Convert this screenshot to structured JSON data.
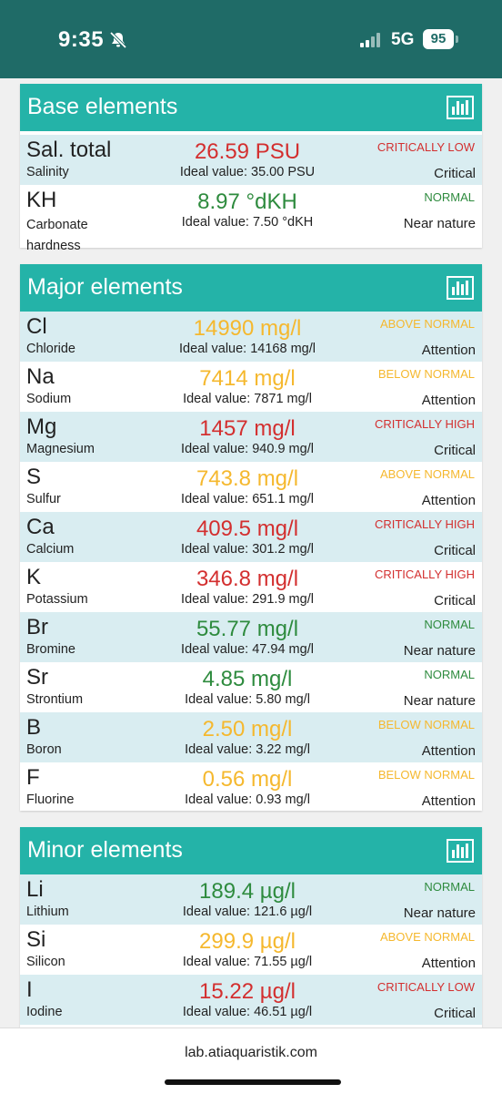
{
  "statusbar": {
    "time": "9:35",
    "network": "5G",
    "battery": "95"
  },
  "colors": {
    "header": "#1f6b67",
    "panel_head": "#24b3a8",
    "alt_row": "#d9edf1",
    "red": "#d32f2f",
    "green": "#2e8b3e",
    "yellow": "#f5b82e"
  },
  "icons": {
    "bell": "bell-slash-icon",
    "chart": "bar-chart-icon",
    "signal": "signal-icon",
    "battery": "battery-icon"
  },
  "sections": {
    "base": {
      "title": "Base elements",
      "rows": [
        {
          "symbol": "Sal. total",
          "name": "Salinity",
          "value": "26.59 PSU",
          "ideal": "Ideal value: 35.00 PSU",
          "status": "CRITICALLY LOW",
          "level": "Critical",
          "color": "red"
        },
        {
          "symbol": "KH",
          "name": "Carbonate hardness",
          "value": "8.97 °dKH",
          "ideal": "Ideal value: 7.50 °dKH",
          "status": "NORMAL",
          "level": "Near nature",
          "color": "green"
        }
      ]
    },
    "major": {
      "title": "Major elements",
      "rows": [
        {
          "symbol": "Cl",
          "name": "Chloride",
          "value": "14990 mg/l",
          "ideal": "Ideal value: 14168 mg/l",
          "status": "ABOVE NORMAL",
          "level": "Attention",
          "color": "yellow"
        },
        {
          "symbol": "Na",
          "name": "Sodium",
          "value": "7414 mg/l",
          "ideal": "Ideal value: 7871 mg/l",
          "status": "BELOW NORMAL",
          "level": "Attention",
          "color": "yellow"
        },
        {
          "symbol": "Mg",
          "name": "Magnesium",
          "value": "1457 mg/l",
          "ideal": "Ideal value: 940.9 mg/l",
          "status": "CRITICALLY HIGH",
          "level": "Critical",
          "color": "red"
        },
        {
          "symbol": "S",
          "name": "Sulfur",
          "value": "743.8 mg/l",
          "ideal": "Ideal value: 651.1 mg/l",
          "status": "ABOVE NORMAL",
          "level": "Attention",
          "color": "yellow"
        },
        {
          "symbol": "Ca",
          "name": "Calcium",
          "value": "409.5 mg/l",
          "ideal": "Ideal value: 301.2 mg/l",
          "status": "CRITICALLY HIGH",
          "level": "Critical",
          "color": "red"
        },
        {
          "symbol": "K",
          "name": "Potassium",
          "value": "346.8 mg/l",
          "ideal": "Ideal value: 291.9 mg/l",
          "status": "CRITICALLY HIGH",
          "level": "Critical",
          "color": "red"
        },
        {
          "symbol": "Br",
          "name": "Bromine",
          "value": "55.77 mg/l",
          "ideal": "Ideal value: 47.94 mg/l",
          "status": "NORMAL",
          "level": "Near nature",
          "color": "green"
        },
        {
          "symbol": "Sr",
          "name": "Strontium",
          "value": "4.85 mg/l",
          "ideal": "Ideal value: 5.80 mg/l",
          "status": "NORMAL",
          "level": "Near nature",
          "color": "green"
        },
        {
          "symbol": "B",
          "name": "Boron",
          "value": "2.50 mg/l",
          "ideal": "Ideal value: 3.22 mg/l",
          "status": "BELOW NORMAL",
          "level": "Attention",
          "color": "yellow"
        },
        {
          "symbol": "F",
          "name": "Fluorine",
          "value": "0.56 mg/l",
          "ideal": "Ideal value: 0.93 mg/l",
          "status": "BELOW NORMAL",
          "level": "Attention",
          "color": "yellow"
        }
      ]
    },
    "minor": {
      "title": "Minor elements",
      "rows": [
        {
          "symbol": "Li",
          "name": "Lithium",
          "value": "189.4 µg/l",
          "ideal": "Ideal value: 121.6 µg/l",
          "status": "NORMAL",
          "level": "Near nature",
          "color": "green"
        },
        {
          "symbol": "Si",
          "name": "Silicon",
          "value": "299.9 µg/l",
          "ideal": "Ideal value: 71.55 µg/l",
          "status": "ABOVE NORMAL",
          "level": "Attention",
          "color": "yellow"
        },
        {
          "symbol": "I",
          "name": "Iodine",
          "value": "15.22 µg/l",
          "ideal": "Ideal value: 46.51 µg/l",
          "status": "CRITICALLY LOW",
          "level": "Critical",
          "color": "red"
        }
      ]
    }
  },
  "browser": {
    "url": "lab.atiaquaristik.com"
  }
}
